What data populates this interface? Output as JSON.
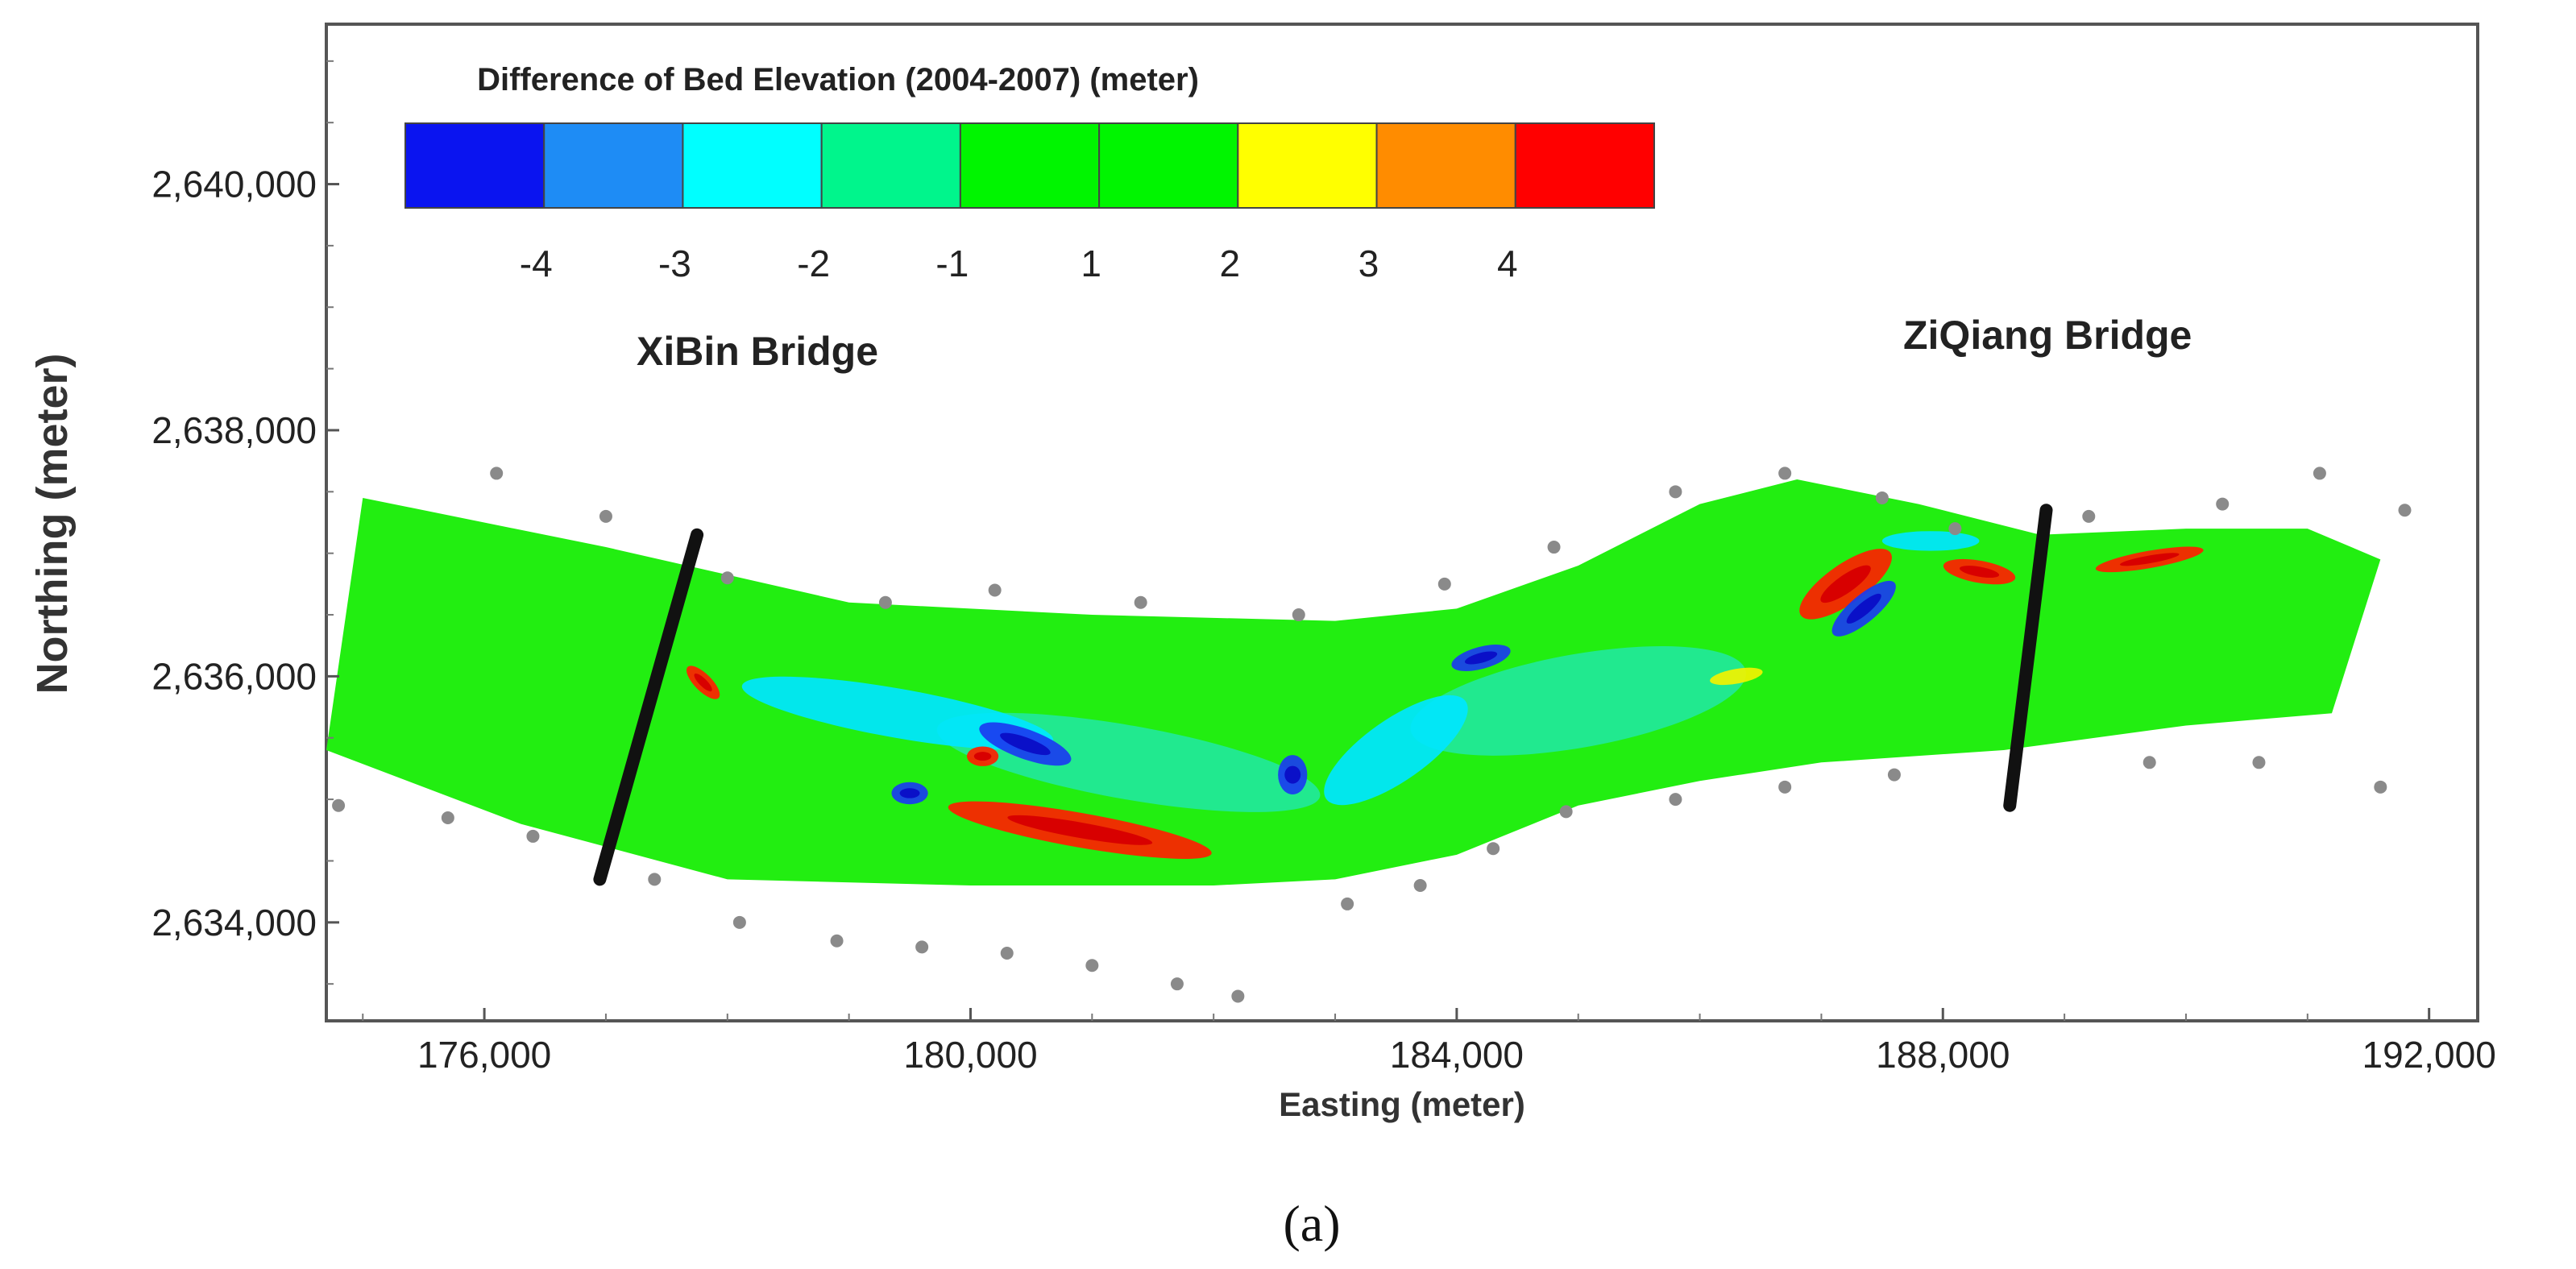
{
  "chart_data": {
    "type": "contour-map",
    "title": "Difference of Bed Elevation (2004-2007) (meter)",
    "xlabel": "Easting (meter)",
    "ylabel": "Northing (meter)",
    "xlim": [
      174700,
      192400
    ],
    "ylim": [
      2633200,
      2641300
    ],
    "x_ticks": [
      176000,
      180000,
      184000,
      188000,
      192000
    ],
    "x_tick_labels": [
      "176,000",
      "180,000",
      "184,000",
      "188,000",
      "192,000"
    ],
    "y_ticks": [
      2634000,
      2636000,
      2638000,
      2640000
    ],
    "y_tick_labels": [
      "2,634,000",
      "2,636,000",
      "2,638,000",
      "2,640,000"
    ],
    "legend": {
      "bins": [
        {
          "color": "#0a14f0"
        },
        {
          "color": "#1e8cf5"
        },
        {
          "color": "#00ffff"
        },
        {
          "color": "#00f58c"
        },
        {
          "color": "#00f500"
        },
        {
          "color": "#00f500"
        },
        {
          "color": "#ffff00"
        },
        {
          "color": "#ff8c00"
        },
        {
          "color": "#ff0000"
        }
      ],
      "tick_labels": [
        "-4",
        "-3",
        "-2",
        "-1",
        "1",
        "2",
        "3",
        "4"
      ]
    },
    "bridges": [
      {
        "name": "XiBin Bridge",
        "start": [
          176950,
          2634350
        ],
        "end": [
          177750,
          2637150
        ]
      },
      {
        "name": "ZiQiang Bridge",
        "start": [
          188550,
          2634950
        ],
        "end": [
          188850,
          2637350
        ]
      }
    ],
    "river_reach": {
      "north_bank": [
        [
          175000,
          2637450
        ],
        [
          177000,
          2637050
        ],
        [
          179000,
          2636600
        ],
        [
          181000,
          2636500
        ],
        [
          183000,
          2636450
        ],
        [
          184000,
          2636550
        ],
        [
          185000,
          2636900
        ],
        [
          186000,
          2637400
        ],
        [
          186800,
          2637600
        ],
        [
          187800,
          2637400
        ],
        [
          188800,
          2637150
        ],
        [
          190000,
          2637200
        ],
        [
          191000,
          2637200
        ],
        [
          191600,
          2636950
        ]
      ],
      "south_bank": [
        [
          174700,
          2635400
        ],
        [
          176300,
          2634800
        ],
        [
          178000,
          2634350
        ],
        [
          180000,
          2634300
        ],
        [
          182000,
          2634300
        ],
        [
          183000,
          2634350
        ],
        [
          184000,
          2634550
        ],
        [
          185000,
          2634950
        ],
        [
          186000,
          2635150
        ],
        [
          187000,
          2635300
        ],
        [
          188500,
          2635400
        ],
        [
          190000,
          2635600
        ],
        [
          191200,
          2635700
        ],
        [
          191600,
          2636950
        ]
      ]
    },
    "survey_points": [
      [
        176100,
        2637650
      ],
      [
        177000,
        2637300
      ],
      [
        178000,
        2636800
      ],
      [
        179300,
        2636600
      ],
      [
        180200,
        2636700
      ],
      [
        181400,
        2636600
      ],
      [
        182700,
        2636500
      ],
      [
        183900,
        2636750
      ],
      [
        184800,
        2637050
      ],
      [
        185800,
        2637500
      ],
      [
        186700,
        2637650
      ],
      [
        187500,
        2637450
      ],
      [
        188100,
        2637200
      ],
      [
        189200,
        2637300
      ],
      [
        190300,
        2637400
      ],
      [
        191100,
        2637650
      ],
      [
        191800,
        2637350
      ],
      [
        174800,
        2634950
      ],
      [
        175700,
        2634850
      ],
      [
        176400,
        2634700
      ],
      [
        177400,
        2634350
      ],
      [
        178100,
        2634000
      ],
      [
        178900,
        2633850
      ],
      [
        179600,
        2633800
      ],
      [
        180300,
        2633750
      ],
      [
        181000,
        2633650
      ],
      [
        181700,
        2633500
      ],
      [
        182200,
        2633400
      ],
      [
        183100,
        2634150
      ],
      [
        183700,
        2634300
      ],
      [
        184300,
        2634600
      ],
      [
        184900,
        2634900
      ],
      [
        185800,
        2635000
      ],
      [
        186700,
        2635100
      ],
      [
        187600,
        2635200
      ],
      [
        189700,
        2635300
      ],
      [
        190600,
        2635300
      ],
      [
        191600,
        2635100
      ]
    ],
    "change_patches": [
      {
        "value": 3.5,
        "color": "#ff2000",
        "center": [
          180900,
          2634750
        ],
        "rx": 1100,
        "ry": 140,
        "angle": -10
      },
      {
        "value": 3.5,
        "color": "#ff2000",
        "center": [
          187200,
          2636750
        ],
        "rx": 450,
        "ry": 160,
        "angle": 35
      },
      {
        "value": 3.5,
        "color": "#ff2000",
        "center": [
          188300,
          2636850
        ],
        "rx": 300,
        "ry": 90,
        "angle": -10
      },
      {
        "value": 3.5,
        "color": "#ff2000",
        "center": [
          189700,
          2636950
        ],
        "rx": 450,
        "ry": 70,
        "angle": 10
      },
      {
        "value": 3.5,
        "color": "#ff2000",
        "center": [
          180100,
          2635350
        ],
        "rx": 130,
        "ry": 80,
        "angle": 0
      },
      {
        "value": 3.5,
        "color": "#ff2000",
        "center": [
          177800,
          2635950
        ],
        "rx": 180,
        "ry": 70,
        "angle": -45
      },
      {
        "value": -3.5,
        "color": "#1a3cf0",
        "center": [
          187350,
          2636550
        ],
        "rx": 330,
        "ry": 110,
        "angle": 40
      },
      {
        "value": -3.5,
        "color": "#1a3cf0",
        "center": [
          180450,
          2635450
        ],
        "rx": 400,
        "ry": 120,
        "angle": -20
      },
      {
        "value": -3.5,
        "color": "#1a3cf0",
        "center": [
          179500,
          2635050
        ],
        "rx": 150,
        "ry": 90,
        "angle": 0
      },
      {
        "value": -3.5,
        "color": "#1a3cf0",
        "center": [
          184200,
          2636150
        ],
        "rx": 250,
        "ry": 90,
        "angle": 15
      },
      {
        "value": -3.5,
        "color": "#1a3cf0",
        "center": [
          182650,
          2635200
        ],
        "rx": 120,
        "ry": 160,
        "angle": 0
      },
      {
        "value": -2.5,
        "color": "#00e6ff",
        "center": [
          179400,
          2635700
        ],
        "rx": 1300,
        "ry": 200,
        "angle": -10
      },
      {
        "value": -2.5,
        "color": "#00e6ff",
        "center": [
          183500,
          2635400
        ],
        "rx": 700,
        "ry": 250,
        "angle": 35
      },
      {
        "value": -2.5,
        "color": "#00e6ff",
        "center": [
          187900,
          2637100
        ],
        "rx": 400,
        "ry": 80,
        "angle": 0
      },
      {
        "value": -1.5,
        "color": "#22e89a",
        "center": [
          185000,
          2635800
        ],
        "rx": 1400,
        "ry": 380,
        "angle": 10
      },
      {
        "value": -1.5,
        "color": "#22e89a",
        "center": [
          181300,
          2635300
        ],
        "rx": 1600,
        "ry": 300,
        "angle": -10
      },
      {
        "value": 2.5,
        "color": "#f2f200",
        "center": [
          186300,
          2636000
        ],
        "rx": 220,
        "ry": 60,
        "angle": 10
      }
    ]
  },
  "caption": "(a)"
}
